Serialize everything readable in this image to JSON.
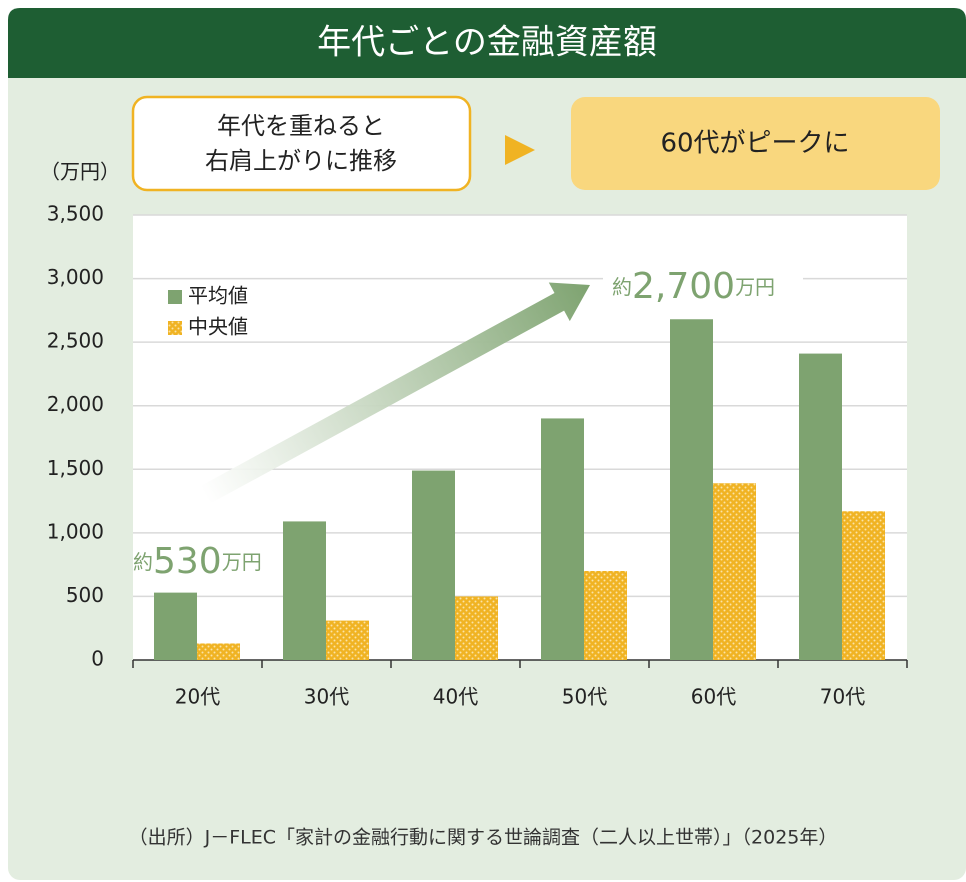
{
  "chart_data": {
    "type": "bar",
    "title": "年代ごとの金融資産額",
    "callout_left": [
      "年代を重ねると",
      "右肩上がりに推移"
    ],
    "callout_right": "60代がピークに",
    "y_unit": "（万円）",
    "categories": [
      "20代",
      "30代",
      "40代",
      "50代",
      "60代",
      "70代"
    ],
    "series": [
      {
        "name": "平均値",
        "color": "#7ea370",
        "values": [
          530,
          1090,
          1490,
          1900,
          2680,
          2410
        ]
      },
      {
        "name": "中央値",
        "color": "#f0b323",
        "values": [
          130,
          310,
          500,
          700,
          1390,
          1170
        ]
      }
    ],
    "ylim": [
      0,
      3500
    ],
    "yticks": [
      0,
      500,
      {
        "value": 1000,
        "label": "1,000"
      },
      {
        "value": 1500,
        "label": "1,500"
      },
      {
        "value": 2000,
        "label": "2,000"
      },
      {
        "value": 2500,
        "label": "2,500"
      },
      {
        "value": 3000,
        "label": "3,000"
      },
      {
        "value": 3500,
        "label": "3,500"
      }
    ],
    "grid": true,
    "annotations": [
      {
        "prefix": "約",
        "value": "530",
        "unit": "万円"
      },
      {
        "prefix": "約",
        "value": "2,700",
        "unit": "万円"
      }
    ],
    "source": "（出所）J－FLEC「家計の金融行動に関する世論調査（二人以上世帯）」（2025年）"
  }
}
